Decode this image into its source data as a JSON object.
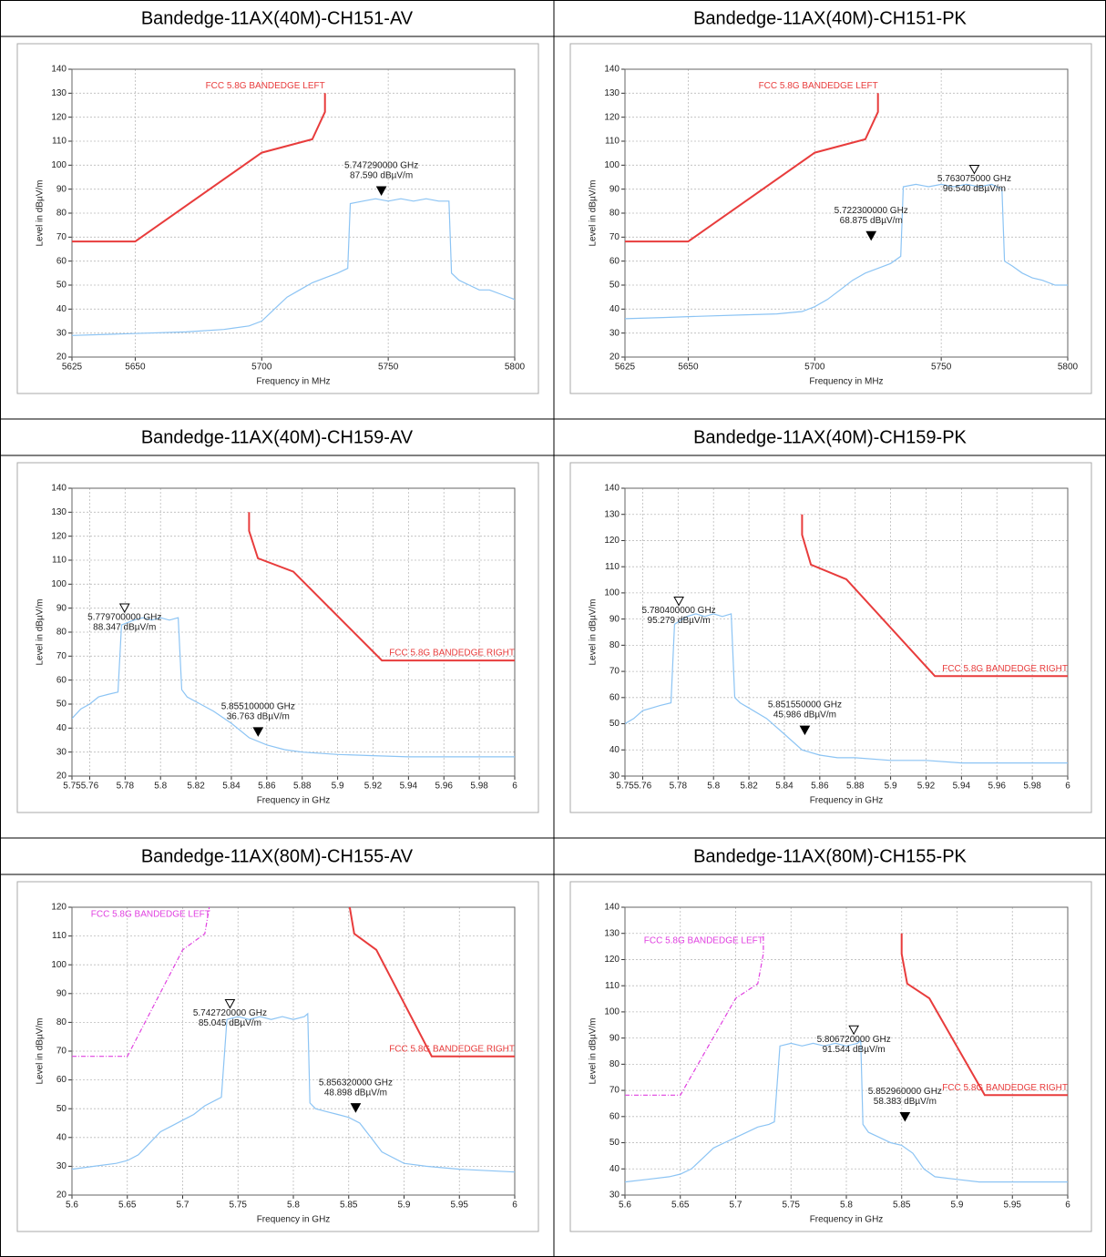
{
  "chart_data": [
    {
      "type": "line",
      "title": "Bandedge-11AX(40M)-CH151-AV",
      "x_label": "Frequency in MHz",
      "y_label": "Level in dBµV/m",
      "xlim": [
        5625,
        5800
      ],
      "xticks": [
        5625,
        5650,
        5700,
        5750,
        5800
      ],
      "ylim": [
        20,
        140
      ],
      "yticks": [
        20,
        30,
        40,
        50,
        60,
        70,
        80,
        90,
        100,
        110,
        120,
        130,
        140
      ],
      "grid": true,
      "series": [
        {
          "name": "FCC 5.8G BANDEDGE LEFT",
          "color": "#e83c3c",
          "x": [
            5625,
            5650,
            5700,
            5720,
            5725,
            5725
          ],
          "values": [
            68.2,
            68.2,
            105.2,
            110.8,
            122.2,
            130
          ]
        },
        {
          "color": "#8cc4f4",
          "x": [
            5625,
            5640,
            5655,
            5670,
            5685,
            5695,
            5700,
            5705,
            5710,
            5715,
            5720,
            5725,
            5730,
            5734,
            5735,
            5740,
            5745,
            5750,
            5755,
            5760,
            5765,
            5770,
            5774,
            5775,
            5778,
            5782,
            5786,
            5790,
            5795,
            5800
          ],
          "values": [
            29,
            29.5,
            30,
            30.5,
            31.5,
            33,
            35,
            40,
            45,
            48,
            51,
            53,
            55,
            57,
            84,
            85,
            86,
            85,
            86,
            85,
            86,
            85,
            85,
            55,
            52,
            50,
            48,
            48,
            46,
            44
          ]
        }
      ],
      "markers": [
        {
          "x": 5747.29,
          "y": 87.59,
          "x_label": "5.747290000 GHz",
          "y_label": "87.590 dBµV/m",
          "filled": true
        }
      ]
    },
    {
      "type": "line",
      "title": "Bandedge-11AX(40M)-CH151-PK",
      "x_label": "Frequency in MHz",
      "y_label": "Level in dBµV/m",
      "xlim": [
        5625,
        5800
      ],
      "xticks": [
        5625,
        5650,
        5700,
        5750,
        5800
      ],
      "ylim": [
        20,
        140
      ],
      "yticks": [
        20,
        30,
        40,
        50,
        60,
        70,
        80,
        90,
        100,
        110,
        120,
        130,
        140
      ],
      "grid": true,
      "series": [
        {
          "name": "FCC 5.8G BANDEDGE LEFT",
          "color": "#e83c3c",
          "x": [
            5625,
            5650,
            5700,
            5720,
            5725,
            5725
          ],
          "values": [
            68.2,
            68.2,
            105.2,
            110.8,
            122.2,
            130
          ]
        },
        {
          "color": "#8cc4f4",
          "x": [
            5625,
            5640,
            5655,
            5670,
            5685,
            5695,
            5700,
            5705,
            5710,
            5715,
            5720,
            5725,
            5730,
            5734,
            5735,
            5740,
            5745,
            5750,
            5755,
            5760,
            5765,
            5770,
            5774,
            5775,
            5778,
            5782,
            5786,
            5790,
            5795,
            5800
          ],
          "values": [
            36,
            36.5,
            37,
            37.5,
            38,
            39,
            41,
            44,
            48,
            52,
            55,
            57,
            59,
            62,
            91,
            92,
            91,
            92,
            91,
            92,
            91,
            92,
            90,
            60,
            58,
            55,
            53,
            52,
            50,
            50
          ]
        }
      ],
      "markers": [
        {
          "x": 5763.075,
          "y": 96.54,
          "x_label": "5.763075000 GHz",
          "y_label": "96.540 dBµV/m",
          "filled": false
        },
        {
          "x": 5722.3,
          "y": 68.875,
          "x_label": "5.722300000 GHz",
          "y_label": "68.875 dBµV/m",
          "filled": true
        }
      ]
    },
    {
      "type": "line",
      "title": "Bandedge-11AX(40M)-CH159-AV",
      "x_label": "Frequency in GHz",
      "y_label": "Level in dBµV/m",
      "xlim": [
        5.75,
        6
      ],
      "xticks": [
        5.75,
        5.76,
        5.78,
        5.8,
        5.82,
        5.84,
        5.86,
        5.88,
        5.9,
        5.92,
        5.94,
        5.96,
        5.98,
        6
      ],
      "ylim": [
        20,
        140
      ],
      "yticks": [
        20,
        30,
        40,
        50,
        60,
        70,
        80,
        90,
        100,
        110,
        120,
        130,
        140
      ],
      "grid": true,
      "series": [
        {
          "name": "FCC 5.8G BANDEDGE RIGHT",
          "color": "#e83c3c",
          "x": [
            5.85,
            5.85,
            5.855,
            5.875,
            5.925,
            6
          ],
          "values": [
            130,
            122.2,
            110.8,
            105.2,
            68.2,
            68.2
          ]
        },
        {
          "color": "#8cc4f4",
          "x": [
            5.75,
            5.755,
            5.76,
            5.765,
            5.77,
            5.776,
            5.778,
            5.785,
            5.79,
            5.795,
            5.8,
            5.805,
            5.81,
            5.812,
            5.815,
            5.82,
            5.83,
            5.84,
            5.85,
            5.86,
            5.87,
            5.88,
            5.9,
            5.92,
            5.94,
            5.96,
            5.98,
            6
          ],
          "values": [
            44,
            48,
            50,
            53,
            54,
            55,
            83,
            85,
            86,
            85,
            86,
            85,
            86,
            56,
            53,
            51,
            47,
            42,
            36,
            33,
            31,
            30,
            29,
            28.5,
            28,
            28,
            28,
            28
          ]
        }
      ],
      "markers": [
        {
          "x": 5.7797,
          "y": 88.347,
          "x_label": "5.779700000 GHz",
          "y_label": "88.347 dBµV/m",
          "filled": false
        },
        {
          "x": 5.8551,
          "y": 36.763,
          "x_label": "5.855100000 GHz",
          "y_label": "36.763 dBµV/m",
          "filled": true
        }
      ]
    },
    {
      "type": "line",
      "title": "Bandedge-11AX(40M)-CH159-PK",
      "x_label": "Frequency in GHz",
      "y_label": "Level in dBµV/m",
      "xlim": [
        5.75,
        6
      ],
      "xticks": [
        5.75,
        5.76,
        5.78,
        5.8,
        5.82,
        5.84,
        5.86,
        5.88,
        5.9,
        5.92,
        5.94,
        5.96,
        5.98,
        6
      ],
      "ylim": [
        30,
        140
      ],
      "yticks": [
        30,
        40,
        50,
        60,
        70,
        80,
        90,
        100,
        110,
        120,
        130,
        140
      ],
      "grid": true,
      "series": [
        {
          "name": "FCC 5.8G BANDEDGE RIGHT",
          "color": "#e83c3c",
          "x": [
            5.85,
            5.85,
            5.855,
            5.875,
            5.925,
            6
          ],
          "values": [
            130,
            122.2,
            110.8,
            105.2,
            68.2,
            68.2
          ]
        },
        {
          "color": "#8cc4f4",
          "x": [
            5.75,
            5.755,
            5.76,
            5.765,
            5.77,
            5.776,
            5.778,
            5.785,
            5.79,
            5.795,
            5.8,
            5.805,
            5.81,
            5.812,
            5.815,
            5.82,
            5.83,
            5.84,
            5.85,
            5.86,
            5.87,
            5.88,
            5.9,
            5.92,
            5.94,
            5.96,
            5.98,
            6
          ],
          "values": [
            50,
            52,
            55,
            56,
            57,
            58,
            88,
            91,
            92,
            91,
            92,
            91,
            92,
            60,
            58,
            56,
            52,
            46,
            40,
            38,
            37,
            37,
            36,
            36,
            35,
            35,
            35,
            35
          ]
        }
      ],
      "markers": [
        {
          "x": 5.7804,
          "y": 95.279,
          "x_label": "5.780400000 GHz",
          "y_label": "95.279 dBµV/m",
          "filled": false
        },
        {
          "x": 5.85155,
          "y": 45.986,
          "x_label": "5.851550000 GHz",
          "y_label": "45.986 dBµV/m",
          "filled": true
        }
      ]
    },
    {
      "type": "line",
      "title": "Bandedge-11AX(80M)-CH155-AV",
      "x_label": "Frequency in GHz",
      "y_label": "Level in dBµV/m",
      "xlim": [
        5.6,
        6
      ],
      "xticks": [
        5.6,
        5.65,
        5.7,
        5.75,
        5.8,
        5.85,
        5.9,
        5.95,
        6
      ],
      "ylim": [
        20,
        120
      ],
      "yticks": [
        20,
        30,
        40,
        50,
        60,
        70,
        80,
        90,
        100,
        110,
        120
      ],
      "grid": true,
      "series": [
        {
          "name": "FCC 5.8G BANDEDGE LEFT",
          "color": "#e040e0",
          "dashed": true,
          "x": [
            5.6,
            5.65,
            5.7,
            5.72,
            5.725,
            5.725
          ],
          "values": [
            68.2,
            68.2,
            105.2,
            110.8,
            122.2,
            130
          ]
        },
        {
          "name": "FCC 5.8G BANDEDGE RIGHT",
          "color": "#e83c3c",
          "x": [
            5.85,
            5.85,
            5.855,
            5.875,
            5.925,
            6
          ],
          "values": [
            130,
            122.2,
            110.8,
            105.2,
            68.2,
            68.2
          ]
        },
        {
          "color": "#8cc4f4",
          "x": [
            5.6,
            5.62,
            5.64,
            5.65,
            5.66,
            5.67,
            5.68,
            5.69,
            5.7,
            5.71,
            5.72,
            5.73,
            5.735,
            5.74,
            5.75,
            5.76,
            5.77,
            5.78,
            5.79,
            5.8,
            5.81,
            5.813,
            5.815,
            5.82,
            5.83,
            5.84,
            5.85,
            5.86,
            5.87,
            5.88,
            5.9,
            5.92,
            5.95,
            6
          ],
          "values": [
            29,
            30,
            31,
            32,
            34,
            38,
            42,
            44,
            46,
            48,
            51,
            53,
            54,
            81,
            82,
            81,
            82,
            81,
            82,
            81,
            82,
            83,
            52,
            50,
            49,
            48,
            47,
            45,
            40,
            35,
            31,
            30,
            29,
            28
          ]
        }
      ],
      "markers": [
        {
          "x": 5.74272,
          "y": 85.045,
          "x_label": "5.742720000 GHz",
          "y_label": "85.045 dBµV/m",
          "filled": false
        },
        {
          "x": 5.85632,
          "y": 48.898,
          "x_label": "5.856320000 GHz",
          "y_label": "48.898 dBµV/m",
          "filled": true
        }
      ]
    },
    {
      "type": "line",
      "title": "Bandedge-11AX(80M)-CH155-PK",
      "x_label": "Frequency in GHz",
      "y_label": "Level in dBµV/m",
      "xlim": [
        5.6,
        6
      ],
      "xticks": [
        5.6,
        5.65,
        5.7,
        5.75,
        5.8,
        5.85,
        5.9,
        5.95,
        6
      ],
      "ylim": [
        30,
        140
      ],
      "yticks": [
        30,
        40,
        50,
        60,
        70,
        80,
        90,
        100,
        110,
        120,
        130,
        140
      ],
      "grid": true,
      "series": [
        {
          "name": "FCC 5.8G BANDEDGE LEFT",
          "color": "#e040e0",
          "dashed": true,
          "x": [
            5.6,
            5.65,
            5.7,
            5.72,
            5.725,
            5.725
          ],
          "values": [
            68.2,
            68.2,
            105.2,
            110.8,
            122.2,
            130
          ]
        },
        {
          "name": "FCC 5.8G BANDEDGE RIGHT",
          "color": "#e83c3c",
          "x": [
            5.85,
            5.85,
            5.855,
            5.875,
            5.925,
            6
          ],
          "values": [
            130,
            122.2,
            110.8,
            105.2,
            68.2,
            68.2
          ]
        },
        {
          "color": "#8cc4f4",
          "x": [
            5.6,
            5.62,
            5.64,
            5.65,
            5.66,
            5.67,
            5.68,
            5.69,
            5.7,
            5.71,
            5.72,
            5.73,
            5.735,
            5.74,
            5.75,
            5.76,
            5.77,
            5.78,
            5.79,
            5.8,
            5.81,
            5.813,
            5.815,
            5.82,
            5.83,
            5.84,
            5.85,
            5.86,
            5.87,
            5.88,
            5.9,
            5.92,
            5.95,
            6
          ],
          "values": [
            35,
            36,
            37,
            38,
            40,
            44,
            48,
            50,
            52,
            54,
            56,
            57,
            58,
            87,
            88,
            87,
            88,
            87,
            88,
            87,
            88,
            89,
            57,
            54,
            52,
            50,
            49,
            46,
            40,
            37,
            36,
            35,
            35,
            35
          ]
        }
      ],
      "markers": [
        {
          "x": 5.80672,
          "y": 91.544,
          "x_label": "5.806720000 GHz",
          "y_label": "91.544 dBµV/m",
          "filled": false
        },
        {
          "x": 5.85296,
          "y": 58.383,
          "x_label": "5.852960000 GHz",
          "y_label": "58.383 dBµV/m",
          "filled": true
        }
      ]
    }
  ]
}
